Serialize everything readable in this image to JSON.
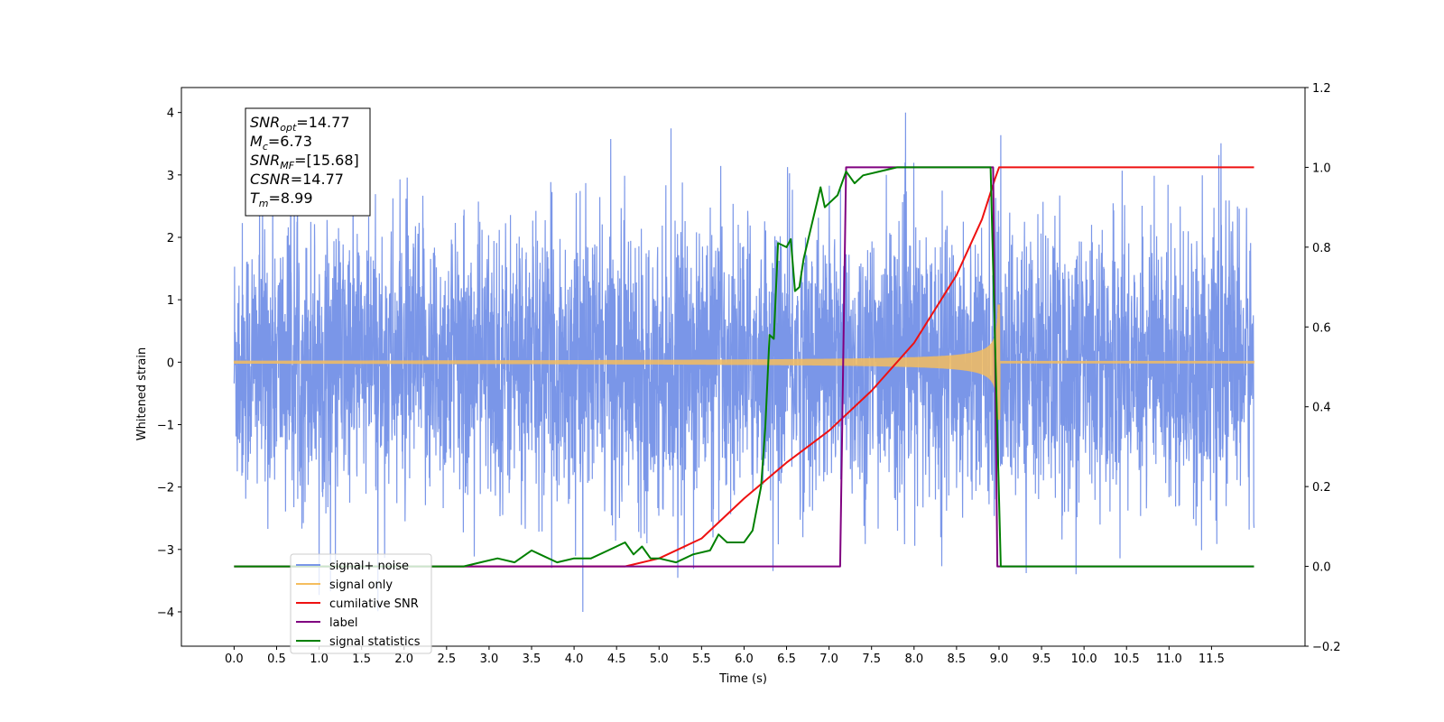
{
  "chart_data": {
    "type": "line",
    "xlabel": "Time (s)",
    "ylabel": "Whitened strain",
    "xlim": [
      -0.62,
      12.6
    ],
    "ylim": [
      -4.55,
      4.4
    ],
    "y2lim": [
      -0.2,
      1.2
    ],
    "x_ticks": [
      "0.0",
      "0.5",
      "1.0",
      "1.5",
      "2.0",
      "2.5",
      "3.0",
      "3.5",
      "4.0",
      "4.5",
      "5.0",
      "5.5",
      "6.0",
      "6.5",
      "7.0",
      "7.5",
      "8.0",
      "8.5",
      "9.0",
      "9.5",
      "10.0",
      "10.5",
      "11.0",
      "11.5"
    ],
    "y_ticks": [
      "4",
      "3",
      "2",
      "1",
      "0",
      "−1",
      "−2",
      "−3",
      "−4"
    ],
    "y2_ticks": [
      "1.2",
      "1.0",
      "0.8",
      "0.6",
      "0.4",
      "0.2",
      "0.0",
      "−0.2"
    ],
    "legend_position": "lower-left",
    "grid": false,
    "annotation": {
      "lines": [
        {
          "sym": "SNR",
          "sub": "opt",
          "val": "=14.77"
        },
        {
          "sym": "M",
          "sub": "c",
          "val": "=6.73"
        },
        {
          "sym": "SNR",
          "sub": "MF",
          "val": "=[15.68]"
        },
        {
          "sym": "CSNR",
          "sub": "",
          "val": "=14.77"
        },
        {
          "sym": "T",
          "sub": "m",
          "val": "=8.99"
        }
      ]
    },
    "series": [
      {
        "name": "signal+ noise",
        "color": "#7a96e8",
        "axis": "left",
        "kind": "noise",
        "x_range": [
          0,
          12
        ],
        "amplitude_range": [
          -4.0,
          4.0
        ]
      },
      {
        "name": "signal only",
        "color": "#f5bd5e",
        "axis": "left",
        "kind": "chirp",
        "x_range": [
          0,
          12
        ],
        "merger_time": 8.99,
        "peak_amplitude": 1.1
      },
      {
        "name": "cumilative SNR",
        "color": "#ee1111",
        "axis": "right",
        "x": [
          0,
          4.6,
          5.0,
          5.5,
          6.0,
          6.5,
          7.0,
          7.5,
          8.0,
          8.5,
          8.8,
          8.95,
          9.0,
          12.0
        ],
        "y": [
          0,
          0,
          0.02,
          0.07,
          0.17,
          0.26,
          0.34,
          0.44,
          0.56,
          0.73,
          0.87,
          0.97,
          1.0,
          1.0
        ]
      },
      {
        "name": "label",
        "color": "#800080",
        "axis": "right",
        "x": [
          0,
          7.13,
          7.2,
          8.93,
          8.98,
          12.0
        ],
        "y": [
          0,
          0,
          1.0,
          1.0,
          0,
          0
        ]
      },
      {
        "name": "signal statistics",
        "color": "#008000",
        "axis": "right",
        "x": [
          0,
          2.7,
          2.9,
          3.1,
          3.3,
          3.5,
          3.6,
          3.8,
          4.0,
          4.2,
          4.4,
          4.6,
          4.7,
          4.8,
          4.9,
          5.0,
          5.2,
          5.4,
          5.6,
          5.7,
          5.8,
          6.0,
          6.1,
          6.2,
          6.25,
          6.3,
          6.35,
          6.4,
          6.5,
          6.55,
          6.6,
          6.65,
          6.7,
          6.8,
          6.9,
          6.95,
          7.0,
          7.1,
          7.2,
          7.3,
          7.4,
          7.6,
          7.8,
          8.0,
          8.5,
          8.9,
          9.02,
          9.1,
          12.0
        ],
        "y": [
          0,
          0,
          0.01,
          0.02,
          0.01,
          0.04,
          0.03,
          0.01,
          0.02,
          0.02,
          0.04,
          0.06,
          0.03,
          0.05,
          0.02,
          0.02,
          0.01,
          0.03,
          0.04,
          0.08,
          0.06,
          0.06,
          0.09,
          0.2,
          0.35,
          0.58,
          0.57,
          0.81,
          0.8,
          0.82,
          0.69,
          0.7,
          0.77,
          0.86,
          0.95,
          0.9,
          0.91,
          0.93,
          0.99,
          0.96,
          0.98,
          0.99,
          1.0,
          1.0,
          1.0,
          1.0,
          0.0,
          0.0,
          0.0
        ]
      }
    ]
  }
}
